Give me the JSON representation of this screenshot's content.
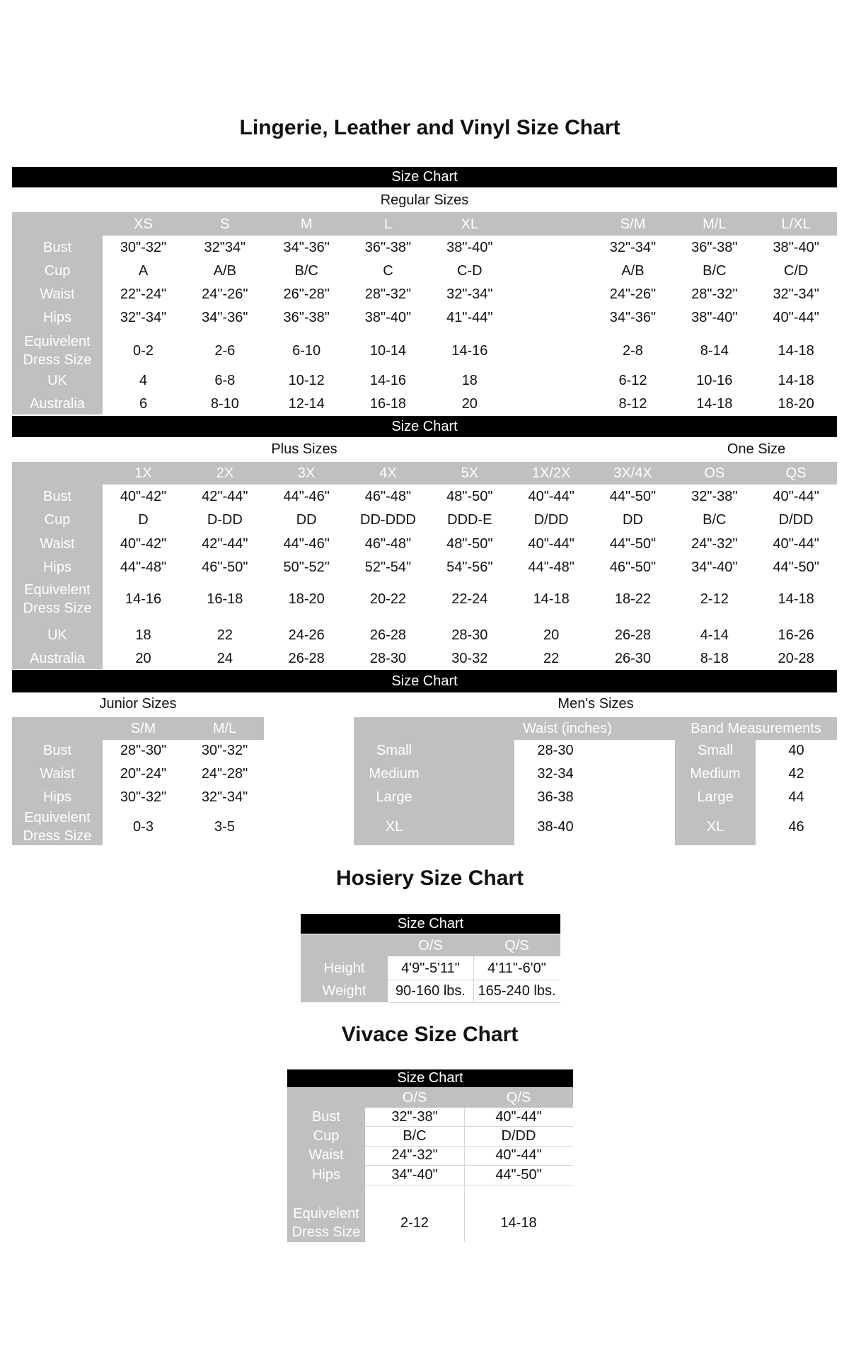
{
  "main_title": "Lingerie, Leather and Vinyl Size Chart",
  "bar_label": "Size Chart",
  "regular": {
    "subtitle": "Regular Sizes",
    "headers": [
      "XS",
      "S",
      "M",
      "L",
      "XL",
      "",
      "S/M",
      "M/L",
      "L/XL"
    ],
    "rows": [
      {
        "label": "Bust",
        "values": [
          "30\"-32\"",
          "32\"34\"",
          "34\"-36\"",
          "36\"-38\"",
          "38\"-40\"",
          "",
          "32\"-34\"",
          "36\"-38\"",
          "38\"-40\""
        ]
      },
      {
        "label": "Cup",
        "values": [
          "A",
          "A/B",
          "B/C",
          "C",
          "C-D",
          "",
          "A/B",
          "B/C",
          "C/D"
        ]
      },
      {
        "label": "Waist",
        "values": [
          "22\"-24\"",
          "24\"-26\"",
          "26\"-28\"",
          "28\"-32\"",
          "32\"-34\"",
          "",
          "24\"-26\"",
          "28\"-32\"",
          "32\"-34\""
        ]
      },
      {
        "label": "Hips",
        "values": [
          "32\"-34\"",
          "34\"-36\"",
          "36\"-38\"",
          "38\"-40\"",
          "41\"-44\"",
          "",
          "34\"-36\"",
          "38\"-40\"",
          "40\"-44\""
        ]
      },
      {
        "label": "Equivelent\nDress Size",
        "values": [
          "0-2",
          "2-6",
          "6-10",
          "10-14",
          "14-16",
          "",
          "2-8",
          "8-14",
          "14-18"
        ]
      },
      {
        "label": "UK",
        "values": [
          "4",
          "6-8",
          "10-12",
          "14-16",
          "18",
          "",
          "6-12",
          "10-16",
          "14-18"
        ]
      },
      {
        "label": "Australia",
        "values": [
          "6",
          "8-10",
          "12-14",
          "16-18",
          "20",
          "",
          "8-12",
          "14-18",
          "18-20"
        ]
      }
    ]
  },
  "plus": {
    "subtitle": "Plus Sizes",
    "subtitle2": "One Size",
    "headers": [
      "1X",
      "2X",
      "3X",
      "4X",
      "5X",
      "1X/2X",
      "3X/4X",
      "OS",
      "QS"
    ],
    "rows": [
      {
        "label": "Bust",
        "values": [
          "40\"-42\"",
          "42\"-44\"",
          "44\"-46\"",
          "46\"-48\"",
          "48\"-50\"",
          "40\"-44\"",
          "44\"-50\"",
          "32\"-38\"",
          "40\"-44\""
        ]
      },
      {
        "label": "Cup",
        "values": [
          "D",
          "D-DD",
          "DD",
          "DD-DDD",
          "DDD-E",
          "D/DD",
          "DD",
          "B/C",
          "D/DD"
        ]
      },
      {
        "label": "Waist",
        "values": [
          "40\"-42\"",
          "42\"-44\"",
          "44\"-46\"",
          "46\"-48\"",
          "48\"-50\"",
          "40\"-44\"",
          "44\"-50\"",
          "24\"-32\"",
          "40\"-44\""
        ]
      },
      {
        "label": "Hips",
        "values": [
          "44\"-48\"",
          "46\"-50\"",
          "50\"-52\"",
          "52\"-54\"",
          "54\"-56\"",
          "44\"-48\"",
          "46\"-50\"",
          "34\"-40\"",
          "44\"-50\""
        ]
      },
      {
        "label": "Equivelent\nDress Size",
        "values": [
          "14-16",
          "16-18",
          "18-20",
          "20-22",
          "22-24",
          "14-18",
          "18-22",
          "2-12",
          "14-18"
        ]
      },
      {
        "label": "UK",
        "values": [
          "18",
          "22",
          "24-26",
          "26-28",
          "28-30",
          "20",
          "26-28",
          "4-14",
          "16-26"
        ]
      },
      {
        "label": "Australia",
        "values": [
          "20",
          "24",
          "26-28",
          "28-30",
          "30-32",
          "22",
          "26-30",
          "8-18",
          "20-28"
        ]
      }
    ]
  },
  "junior": {
    "subtitle": "Junior Sizes",
    "headers": [
      "S/M",
      "M/L"
    ],
    "rows": [
      {
        "label": "Bust",
        "values": [
          "28\"-30\"",
          "30\"-32\""
        ]
      },
      {
        "label": "Waist",
        "values": [
          "20\"-24\"",
          "24\"-28\""
        ]
      },
      {
        "label": "Hips",
        "values": [
          "30\"-32\"",
          "32\"-34\""
        ]
      },
      {
        "label": "Equivelent\nDress Size",
        "values": [
          "0-3",
          "3-5"
        ]
      }
    ]
  },
  "mens": {
    "subtitle": "Men's Sizes",
    "waist_header": "Waist (inches)",
    "band_header": "Band Measurements",
    "rows": [
      {
        "label": "Small",
        "waist": "28-30",
        "band_label": "Small",
        "band": "40"
      },
      {
        "label": "Medium",
        "waist": "32-34",
        "band_label": "Medium",
        "band": "42"
      },
      {
        "label": "Large",
        "waist": "36-38",
        "band_label": "Large",
        "band": "44"
      },
      {
        "label": "XL",
        "waist": "38-40",
        "band_label": "XL",
        "band": "46"
      }
    ]
  },
  "hosiery": {
    "title": "Hosiery Size Chart",
    "bar_label": "Size Chart",
    "headers": [
      "O/S",
      "Q/S"
    ],
    "rows": [
      {
        "label": "Height",
        "values": [
          "4'9\"-5'11\"",
          "4'11\"-6'0\""
        ]
      },
      {
        "label": "Weight",
        "values": [
          "90-160 lbs.",
          "165-240 lbs."
        ]
      }
    ]
  },
  "vivace": {
    "title": "Vivace Size Chart",
    "bar_label": "Size Chart",
    "headers": [
      "O/S",
      "Q/S"
    ],
    "rows": [
      {
        "label": "Bust",
        "values": [
          "32\"-38\"",
          "40\"-44\""
        ]
      },
      {
        "label": "Cup",
        "values": [
          "B/C",
          "D/DD"
        ]
      },
      {
        "label": "Waist",
        "values": [
          "24\"-32\"",
          "40\"-44\""
        ]
      },
      {
        "label": "Hips",
        "values": [
          "34\"-40\"",
          "44\"-50\""
        ]
      },
      {
        "label": "Equivelent\nDress Size",
        "values": [
          "2-12",
          "14-18"
        ]
      }
    ]
  },
  "colors": {
    "bar": "#000000",
    "gray": "#c0c0c0",
    "label_text": "#ffffff"
  }
}
